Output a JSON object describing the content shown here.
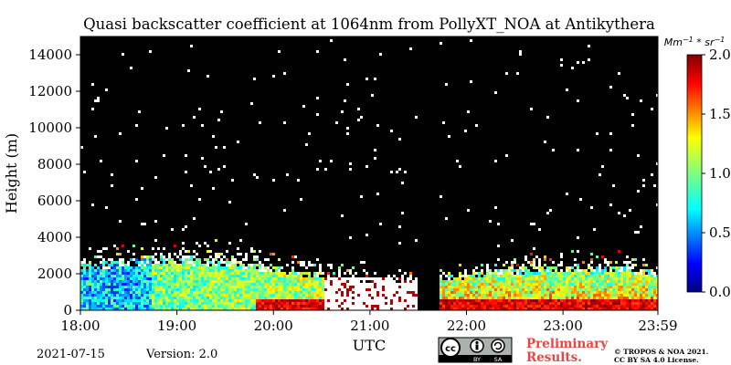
{
  "chart_data": {
    "type": "heatmap",
    "title": "Quasi backscatter coefficient at 1064nm from PollyXT_NOA at Antikythera",
    "xlabel": "UTC",
    "ylabel": "Height (m)",
    "x_ticks": [
      "18:00",
      "19:00",
      "20:00",
      "21:00",
      "22:00",
      "23:00",
      "23:59"
    ],
    "x_range": [
      "18:00",
      "23:59"
    ],
    "y_ticks": [
      0,
      2000,
      4000,
      6000,
      8000,
      10000,
      12000,
      14000
    ],
    "ylim": [
      0,
      15000
    ],
    "colorbar": {
      "unit": "Mm^-1 * sr^-1",
      "ticks": [
        "0.0",
        "0.5",
        "1.0",
        "1.5",
        "2.0"
      ],
      "range": [
        0,
        2
      ],
      "colormap": "jet"
    },
    "no_data_interval": [
      "21:31",
      "21:42"
    ],
    "background_color": "#000000",
    "saturated_color": "#ffffff"
  },
  "footer": {
    "date": "2021-07-15",
    "version": "Version: 2.0",
    "preliminary_line1": "Preliminary",
    "preliminary_line2": "Results.",
    "copyright_line1": "© TROPOS & NOA 2021.",
    "copyright_line2": "CC BY SA 4.0 License.",
    "license_badge": {
      "cc": "cc",
      "by": "BY",
      "sa": "SA"
    }
  }
}
